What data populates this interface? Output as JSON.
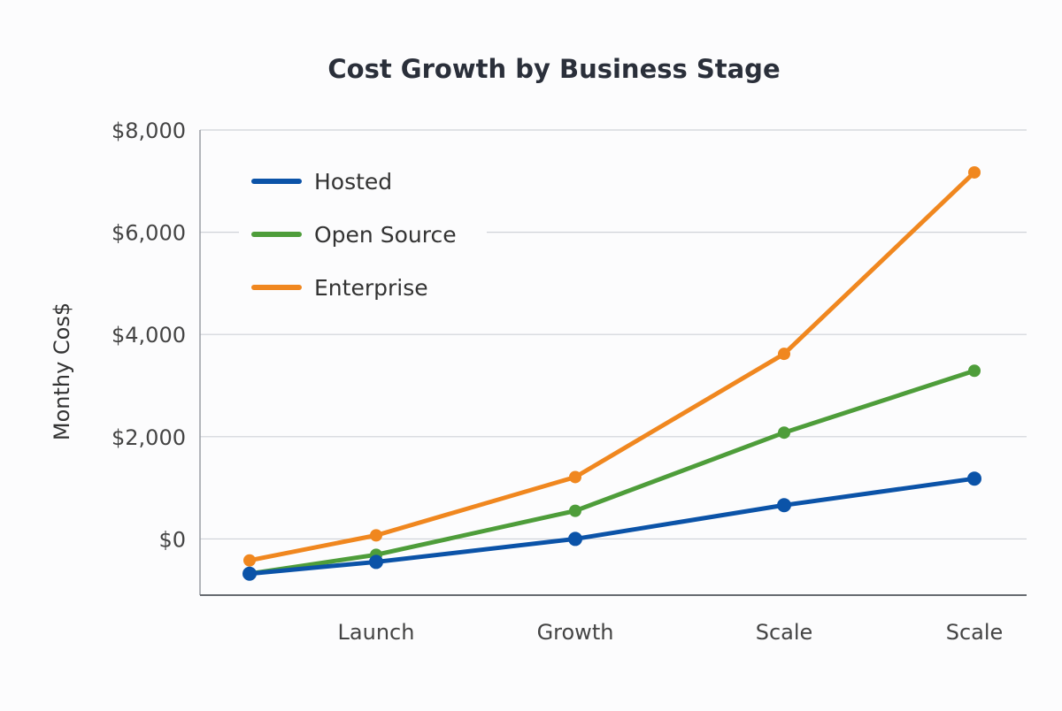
{
  "chart_data": {
    "type": "line",
    "title": "Cost Growth by Business Stage",
    "xlabel": "",
    "ylabel": "Monthy Cos$",
    "categories": [
      "",
      "Launch",
      "Growth",
      "Scale",
      "Scale"
    ],
    "ylim": [
      -1100,
      8000
    ],
    "yticks": [
      0,
      2000,
      4000,
      6000,
      8000
    ],
    "ytick_labels": [
      "$0",
      "$2,000",
      "$4,000",
      "$6,000",
      "$8,000"
    ],
    "grid": true,
    "legend_position": "top-left",
    "series": [
      {
        "name": "Hosted",
        "color": "#0b53a8",
        "values": [
          -680,
          -450,
          0,
          660,
          1180
        ]
      },
      {
        "name": "Open Source",
        "color": "#4e9d3a",
        "values": [
          -680,
          -310,
          550,
          2080,
          3290
        ]
      },
      {
        "name": "Enterprise",
        "color": "#f0871f",
        "values": [
          -420,
          70,
          1210,
          3620,
          7170
        ]
      }
    ]
  }
}
